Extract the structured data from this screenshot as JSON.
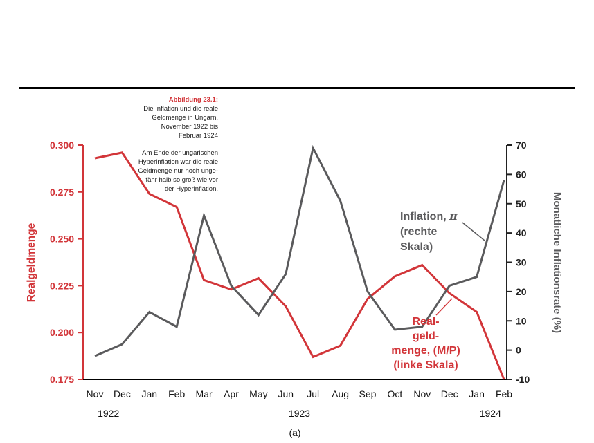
{
  "colors": {
    "red": "#d23539",
    "gray": "#5a5a5c",
    "dark": "#222222",
    "axis_black": "#000000"
  },
  "page": {
    "figure_label": "(a)"
  },
  "caption": {
    "title": "Abbildung 23.1:",
    "subtitle_lines": [
      "Die Inflation und die reale",
      "Geldmenge in Ungarn,",
      "November 1922 bis",
      "Februar 1924"
    ],
    "body_lines": [
      "Am Ende der ungarischen",
      "Hyperinflation war die reale",
      "Geldmenge nur noch unge-",
      "fähr halb so groß wie vor",
      "der Hyperinflation."
    ]
  },
  "chart_data": {
    "type": "line",
    "title": "Die Inflation und die reale Geldmenge in Ungarn, November 1922 bis Februar 1924",
    "months": [
      "Nov",
      "Dec",
      "Jan",
      "Feb",
      "Mar",
      "Apr",
      "May",
      "Jun",
      "Jul",
      "Aug",
      "Sep",
      "Oct",
      "Nov",
      "Dec",
      "Jan",
      "Feb"
    ],
    "years": [
      {
        "label": "1922",
        "from": 0,
        "to": 1
      },
      {
        "label": "1923",
        "from": 2,
        "to": 13
      },
      {
        "label": "1924",
        "from": 14,
        "to": 15
      }
    ],
    "left_axis": {
      "label": "Realgeldmenge",
      "min": 0.175,
      "max": 0.3,
      "ticks": [
        0.175,
        0.2,
        0.225,
        0.25,
        0.275,
        0.3
      ],
      "tick_labels": [
        "0.175",
        "0.200",
        "0.225",
        "0.250",
        "0.275",
        "0.300"
      ]
    },
    "right_axis": {
      "label": "Monatliche Inflationsrate (%)",
      "min": -10,
      "max": 70,
      "ticks": [
        -10,
        0,
        10,
        20,
        30,
        40,
        50,
        60,
        70
      ],
      "tick_labels": [
        "-10",
        "0",
        "10",
        "20",
        "30",
        "40",
        "50",
        "60",
        "70"
      ]
    },
    "series": [
      {
        "name": "Realgeldmenge (M/P), linke Skala",
        "axis": "left",
        "color": "#d23539",
        "values": [
          0.293,
          0.296,
          0.274,
          0.267,
          0.228,
          0.223,
          0.229,
          0.214,
          0.187,
          0.193,
          0.218,
          0.23,
          0.236,
          0.221,
          0.211,
          0.175
        ]
      },
      {
        "name": "Inflation π, rechte Skala",
        "axis": "right",
        "color": "#5a5a5c",
        "values": [
          -2,
          2,
          13,
          8,
          46,
          22,
          12,
          26,
          69,
          51,
          20,
          7,
          8,
          22,
          25,
          58
        ]
      }
    ],
    "annotations": {
      "inflation_label_lines": [
        "Inflation, π",
        "(rechte",
        "Skala)"
      ],
      "money_label_lines": [
        "Real-",
        "geld-",
        "menge, (M/P)",
        "(linke Skala)"
      ]
    }
  }
}
